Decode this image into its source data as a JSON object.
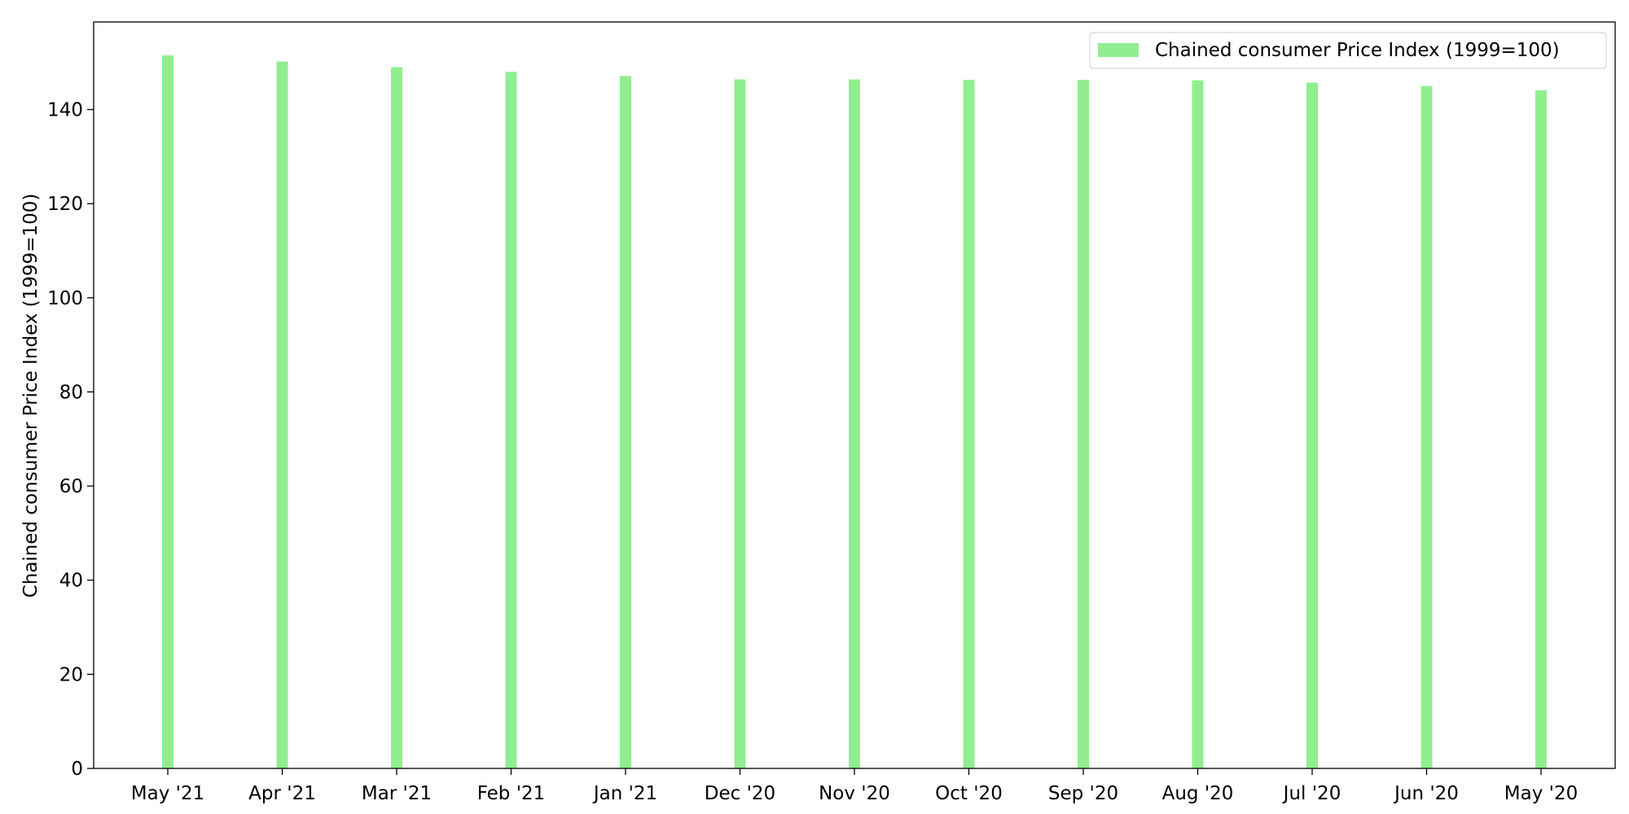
{
  "chart_data": {
    "type": "bar",
    "title": "",
    "xlabel": "",
    "ylabel": "Chained consumer Price Index (1999=100)",
    "categories": [
      "May '21",
      "Apr '21",
      "Mar '21",
      "Feb '21",
      "Jan '21",
      "Dec '20",
      "Nov '20",
      "Oct '20",
      "Sep '20",
      "Aug '20",
      "Jul '20",
      "Jun '20",
      "May '20"
    ],
    "series": [
      {
        "name": "Chained consumer Price Index (1999=100)",
        "values": [
          151.5,
          150.2,
          149.0,
          148.0,
          147.1,
          146.4,
          146.4,
          146.3,
          146.3,
          146.2,
          145.7,
          145.0,
          144.1
        ],
        "color": "#90ee90"
      }
    ],
    "ylim": [
      0,
      158.6
    ],
    "yticks": [
      0,
      20,
      40,
      60,
      80,
      100,
      120,
      140
    ],
    "grid": false,
    "legend_position": "top-right"
  }
}
